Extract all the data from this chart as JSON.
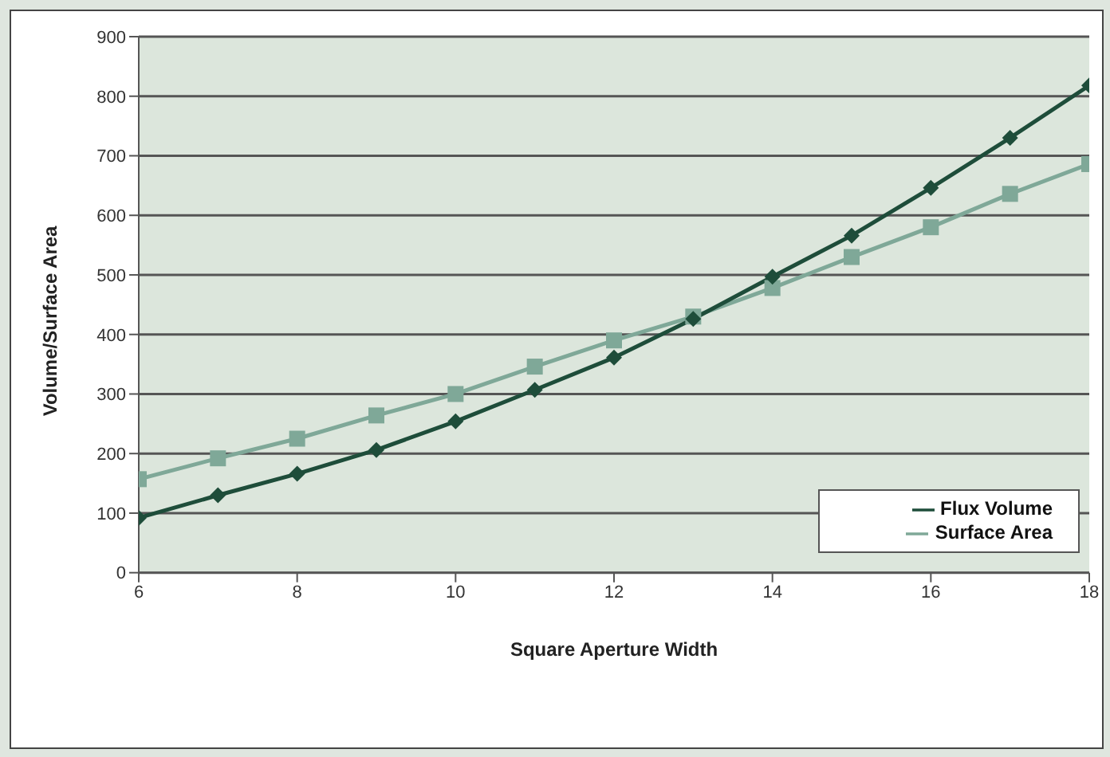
{
  "chart_data": {
    "type": "line",
    "xlabel": "Square Aperture Width",
    "ylabel": "Volume/Surface Area",
    "x": [
      6,
      7,
      8,
      9,
      10,
      11,
      12,
      13,
      14,
      15,
      16,
      17,
      18
    ],
    "series": [
      {
        "name": "Flux Volume",
        "color": "#1e4d3a",
        "marker": "diamond",
        "values": [
          92,
          130,
          166,
          206,
          254,
          307,
          361,
          426,
          497,
          566,
          646,
          730,
          818
        ]
      },
      {
        "name": "Surface Area",
        "color": "#7fa898",
        "marker": "square",
        "values": [
          157,
          192,
          225,
          264,
          300,
          346,
          390,
          430,
          478,
          530,
          580,
          636,
          686
        ]
      }
    ],
    "xlim": [
      6,
      18
    ],
    "xticks": [
      6,
      8,
      10,
      12,
      14,
      16,
      18
    ],
    "ylim": [
      0,
      900
    ],
    "yticks": [
      0,
      100,
      200,
      300,
      400,
      500,
      600,
      700,
      800,
      900
    ],
    "grid": "y",
    "legend": "bottom right"
  }
}
